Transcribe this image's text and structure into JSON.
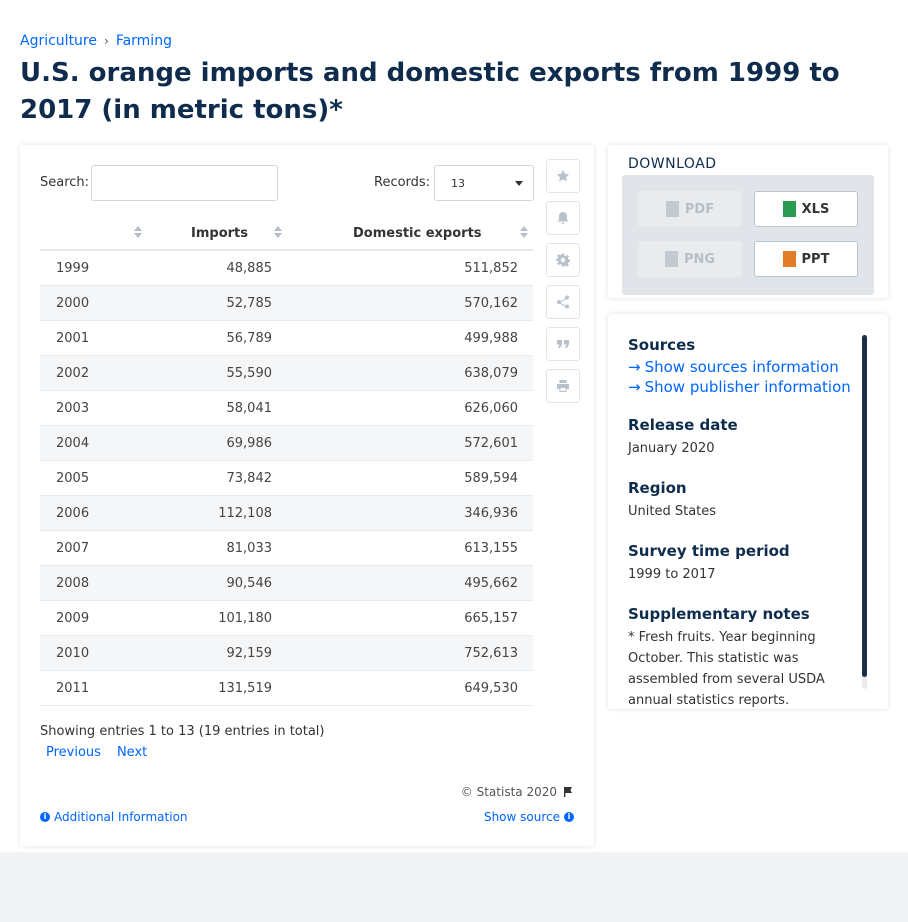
{
  "breadcrumb": {
    "items": [
      "Agriculture",
      "Farming"
    ],
    "separator": "›"
  },
  "page_title": "U.S. orange imports and domestic exports from 1999 to 2017 (in metric tons)*",
  "table_controls": {
    "search_label": "Search:",
    "search_value": "",
    "records_label": "Records:",
    "records_value": "13"
  },
  "table": {
    "columns": [
      "",
      "Imports",
      "Domestic exports"
    ],
    "rows": [
      [
        "1999",
        "48,885",
        "511,852"
      ],
      [
        "2000",
        "52,785",
        "570,162"
      ],
      [
        "2001",
        "56,789",
        "499,988"
      ],
      [
        "2002",
        "55,590",
        "638,079"
      ],
      [
        "2003",
        "58,041",
        "626,060"
      ],
      [
        "2004",
        "69,986",
        "572,601"
      ],
      [
        "2005",
        "73,842",
        "589,594"
      ],
      [
        "2006",
        "112,108",
        "346,936"
      ],
      [
        "2007",
        "81,033",
        "613,155"
      ],
      [
        "2008",
        "90,546",
        "495,662"
      ],
      [
        "2009",
        "101,180",
        "665,157"
      ],
      [
        "2010",
        "92,159",
        "752,613"
      ],
      [
        "2011",
        "131,519",
        "649,530"
      ]
    ]
  },
  "pagination": {
    "info": "Showing entries 1 to 13 (19 entries in total)",
    "previous": "Previous",
    "next": "Next"
  },
  "footer": {
    "copyright": "© Statista 2020",
    "additional_info": "Additional Information",
    "show_source": "Show source"
  },
  "side_tools": [
    "star-icon",
    "bell-icon",
    "gear-icon",
    "share-icon",
    "quote-icon",
    "print-icon"
  ],
  "download": {
    "title": "DOWNLOAD",
    "buttons": [
      {
        "label": "PDF",
        "enabled": false
      },
      {
        "label": "XLS",
        "enabled": true
      },
      {
        "label": "PNG",
        "enabled": false
      },
      {
        "label": "PPT",
        "enabled": true
      }
    ]
  },
  "info": {
    "sources_heading": "Sources",
    "sources_link": "Show sources information",
    "publisher_link": "Show publisher information",
    "release_heading": "Release date",
    "release_value": "January 2020",
    "region_heading": "Region",
    "region_value": "United States",
    "survey_heading": "Survey time period",
    "survey_value": "1999 to 2017",
    "notes_heading": "Supplementary notes",
    "notes_value": "* Fresh fruits. Year beginning October. This statistic was assembled from several USDA annual statistics reports."
  },
  "colors": {
    "link": "#0066ff",
    "title": "#0f2c4d",
    "xls": "#2a9c52",
    "ppt": "#e37c26"
  }
}
